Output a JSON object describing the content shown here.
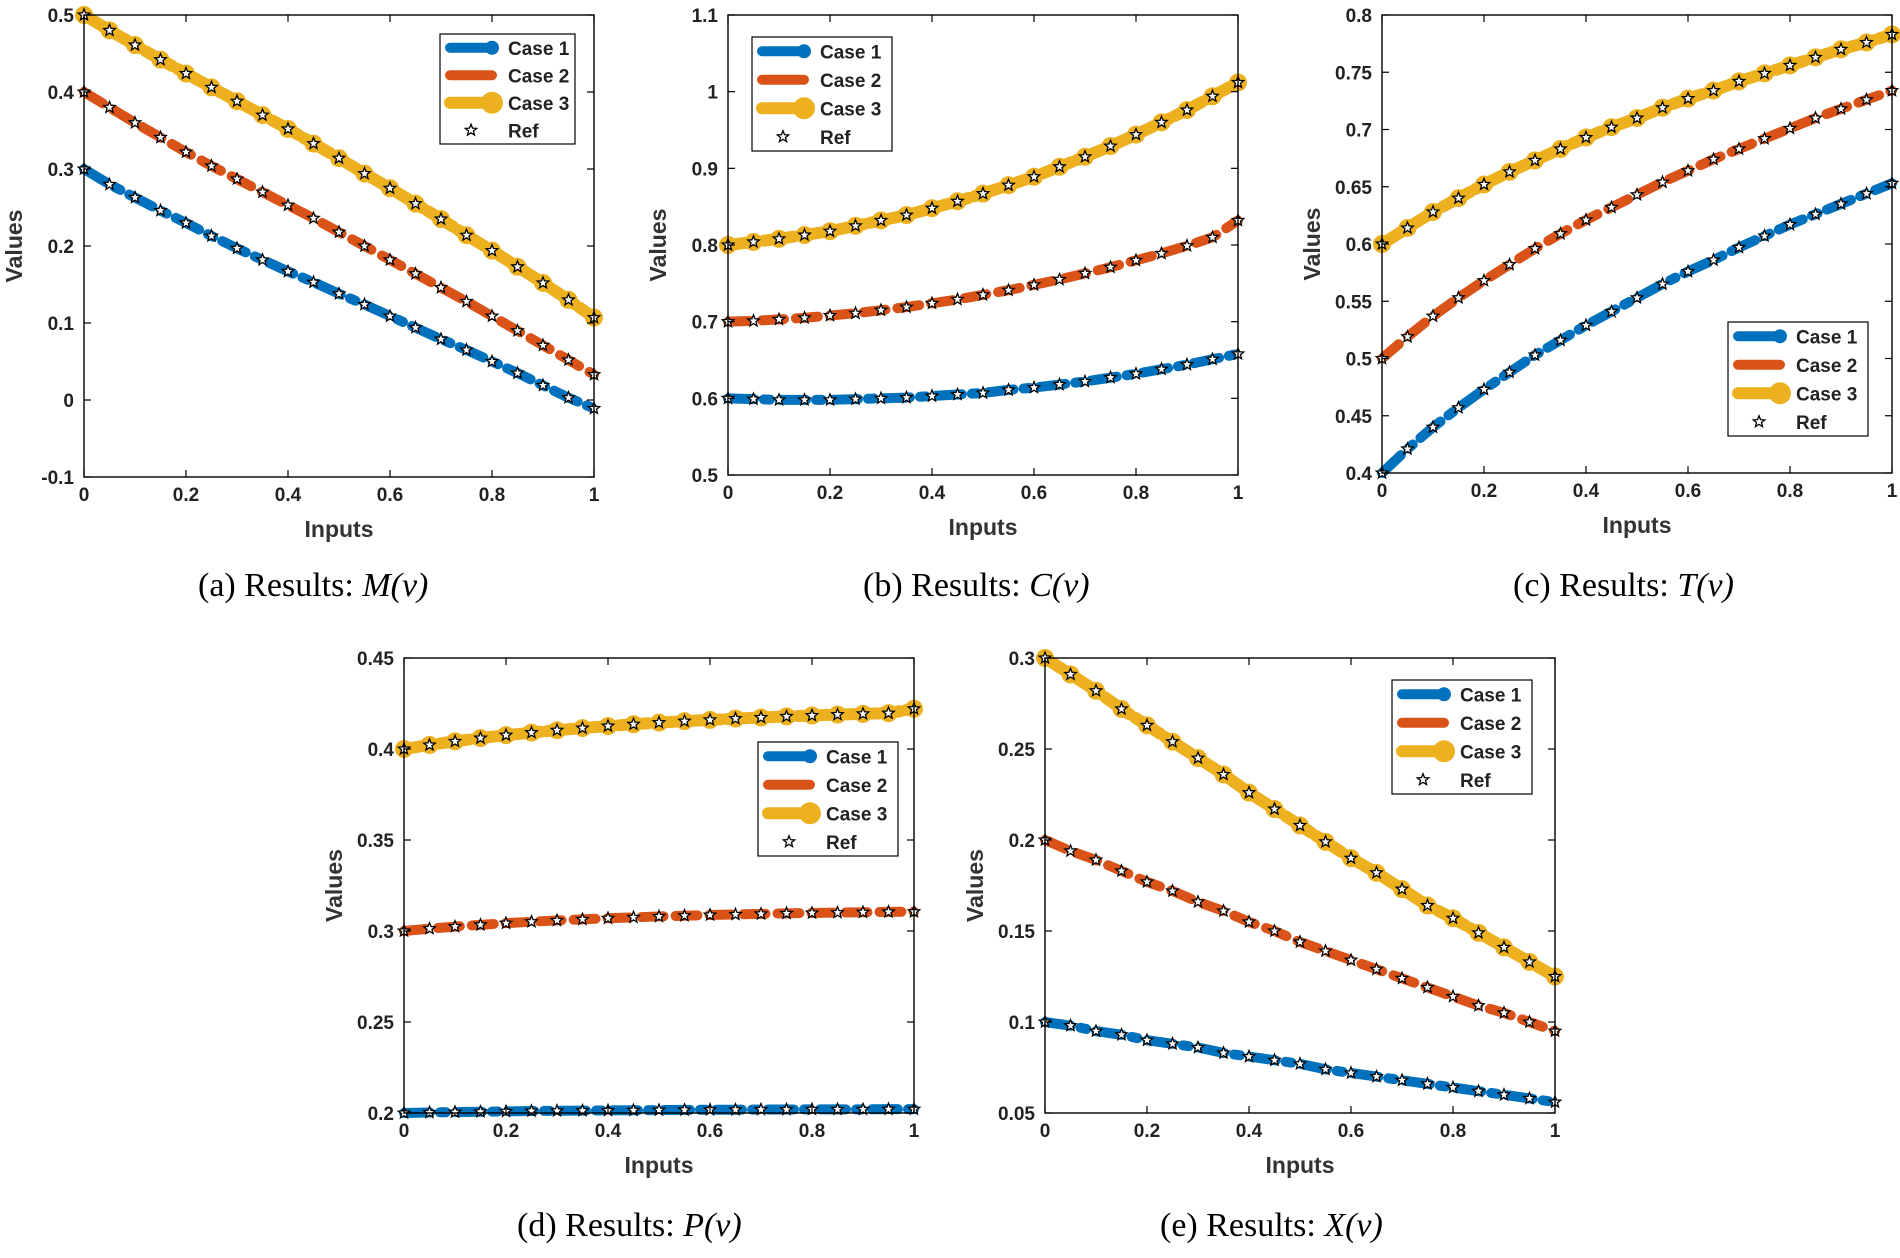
{
  "figure": {
    "colors": {
      "case1": "#0072BD",
      "case2": "#D95319",
      "case3": "#EDB120",
      "ref": "#000000",
      "axis": "#000000"
    }
  },
  "chart_data": [
    {
      "type": "line",
      "panel": "a",
      "caption_prefix": "(a) Results: ",
      "caption_fn": "M(v)",
      "xlabel": "Inputs",
      "ylabel": "Values",
      "xlim": [
        0,
        1
      ],
      "ylim": [
        -0.1,
        0.5
      ],
      "xticks": [
        0,
        0.2,
        0.4,
        0.6,
        0.8,
        1
      ],
      "xtick_labels": [
        "0",
        "0.2",
        "0.4",
        "0.6",
        "0.8",
        "1"
      ],
      "yticks": [
        -0.1,
        0,
        0.1,
        0.2,
        0.3,
        0.4,
        0.5
      ],
      "ytick_labels": [
        "-0.1",
        "0",
        "0.1",
        "0.2",
        "0.3",
        "0.4",
        "0.5"
      ],
      "legend_position": "top-right",
      "legend": [
        "Case 1",
        "Case 2",
        "Case 3",
        "Ref"
      ],
      "x": [
        0,
        0.05,
        0.1,
        0.15,
        0.2,
        0.25,
        0.3,
        0.35,
        0.4,
        0.45,
        0.5,
        0.55,
        0.6,
        0.65,
        0.7,
        0.75,
        0.8,
        0.85,
        0.9,
        0.95,
        1
      ],
      "series": [
        {
          "name": "Case 1",
          "values": [
            0.3,
            0.28,
            0.263,
            0.246,
            0.23,
            0.213,
            0.197,
            0.182,
            0.167,
            0.153,
            0.138,
            0.124,
            0.109,
            0.094,
            0.079,
            0.065,
            0.05,
            0.035,
            0.019,
            0.003,
            -0.011
          ]
        },
        {
          "name": "Case 2",
          "values": [
            0.4,
            0.38,
            0.36,
            0.341,
            0.322,
            0.304,
            0.287,
            0.27,
            0.253,
            0.236,
            0.218,
            0.2,
            0.182,
            0.164,
            0.146,
            0.128,
            0.109,
            0.09,
            0.071,
            0.052,
            0.033
          ]
        },
        {
          "name": "Case 3",
          "values": [
            0.5,
            0.48,
            0.461,
            0.442,
            0.424,
            0.406,
            0.388,
            0.37,
            0.352,
            0.333,
            0.314,
            0.294,
            0.275,
            0.255,
            0.235,
            0.214,
            0.194,
            0.173,
            0.152,
            0.13,
            0.107
          ]
        }
      ]
    },
    {
      "type": "line",
      "panel": "b",
      "caption_prefix": "(b) Results: ",
      "caption_fn": "C(v)",
      "xlabel": "Inputs",
      "ylabel": "Values",
      "xlim": [
        0,
        1
      ],
      "ylim": [
        0.5,
        1.1
      ],
      "xticks": [
        0,
        0.2,
        0.4,
        0.6,
        0.8,
        1
      ],
      "xtick_labels": [
        "0",
        "0.2",
        "0.4",
        "0.6",
        "0.8",
        "1"
      ],
      "yticks": [
        0.5,
        0.6,
        0.7,
        0.8,
        0.9,
        1,
        1.1
      ],
      "ytick_labels": [
        "0.5",
        "0.6",
        "0.7",
        "0.8",
        "0.9",
        "1",
        "1.1"
      ],
      "legend_position": "top-left",
      "legend": [
        "Case 1",
        "Case 2",
        "Case 3",
        "Ref"
      ],
      "x": [
        0,
        0.05,
        0.1,
        0.15,
        0.2,
        0.25,
        0.3,
        0.35,
        0.4,
        0.45,
        0.5,
        0.55,
        0.6,
        0.65,
        0.7,
        0.75,
        0.8,
        0.85,
        0.9,
        0.95,
        1
      ],
      "series": [
        {
          "name": "Case 1",
          "values": [
            0.6,
            0.599,
            0.598,
            0.598,
            0.598,
            0.599,
            0.6,
            0.601,
            0.603,
            0.605,
            0.607,
            0.611,
            0.614,
            0.618,
            0.622,
            0.627,
            0.632,
            0.638,
            0.644,
            0.651,
            0.658
          ]
        },
        {
          "name": "Case 2",
          "values": [
            0.7,
            0.701,
            0.703,
            0.705,
            0.708,
            0.711,
            0.715,
            0.719,
            0.724,
            0.729,
            0.735,
            0.741,
            0.748,
            0.755,
            0.763,
            0.771,
            0.78,
            0.789,
            0.799,
            0.81,
            0.832
          ]
        },
        {
          "name": "Case 3",
          "values": [
            0.8,
            0.804,
            0.808,
            0.813,
            0.818,
            0.825,
            0.832,
            0.839,
            0.848,
            0.857,
            0.867,
            0.878,
            0.889,
            0.902,
            0.915,
            0.929,
            0.944,
            0.96,
            0.976,
            0.994,
            1.012
          ]
        }
      ]
    },
    {
      "type": "line",
      "panel": "c",
      "caption_prefix": "(c) Results: ",
      "caption_fn": "T(v)",
      "xlabel": "Inputs",
      "ylabel": "Values",
      "xlim": [
        0,
        1
      ],
      "ylim": [
        0.4,
        0.8
      ],
      "xticks": [
        0,
        0.2,
        0.4,
        0.6,
        0.8,
        1
      ],
      "xtick_labels": [
        "0",
        "0.2",
        "0.4",
        "0.6",
        "0.8",
        "1"
      ],
      "yticks": [
        0.4,
        0.45,
        0.5,
        0.55,
        0.6,
        0.65,
        0.7,
        0.75,
        0.8
      ],
      "ytick_labels": [
        "0.4",
        "0.45",
        "0.5",
        "0.55",
        "0.6",
        "0.65",
        "0.7",
        "0.75",
        "0.8"
      ],
      "legend_position": "bottom-right",
      "legend": [
        "Case 1",
        "Case 2",
        "Case 3",
        "Ref"
      ],
      "x": [
        0,
        0.05,
        0.1,
        0.15,
        0.2,
        0.25,
        0.3,
        0.35,
        0.4,
        0.45,
        0.5,
        0.55,
        0.6,
        0.65,
        0.7,
        0.75,
        0.8,
        0.85,
        0.9,
        0.95,
        1
      ],
      "series": [
        {
          "name": "Case 1",
          "values": [
            0.4,
            0.421,
            0.44,
            0.457,
            0.473,
            0.488,
            0.503,
            0.516,
            0.529,
            0.541,
            0.553,
            0.565,
            0.576,
            0.586,
            0.597,
            0.607,
            0.617,
            0.626,
            0.635,
            0.644,
            0.653
          ]
        },
        {
          "name": "Case 2",
          "values": [
            0.5,
            0.519,
            0.537,
            0.553,
            0.568,
            0.582,
            0.596,
            0.609,
            0.621,
            0.632,
            0.643,
            0.654,
            0.664,
            0.674,
            0.683,
            0.692,
            0.701,
            0.71,
            0.718,
            0.726,
            0.734
          ]
        },
        {
          "name": "Case 3",
          "values": [
            0.6,
            0.614,
            0.628,
            0.64,
            0.652,
            0.663,
            0.673,
            0.683,
            0.693,
            0.702,
            0.71,
            0.719,
            0.727,
            0.734,
            0.742,
            0.749,
            0.756,
            0.763,
            0.77,
            0.776,
            0.783
          ]
        }
      ]
    },
    {
      "type": "line",
      "panel": "d",
      "caption_prefix": "(d) Results: ",
      "caption_fn": "P(v)",
      "xlabel": "Inputs",
      "ylabel": "Values",
      "xlim": [
        0,
        1
      ],
      "ylim": [
        0.2,
        0.45
      ],
      "xticks": [
        0,
        0.2,
        0.4,
        0.6,
        0.8,
        1
      ],
      "xtick_labels": [
        "0",
        "0.2",
        "0.4",
        "0.6",
        "0.8",
        "1"
      ],
      "yticks": [
        0.2,
        0.25,
        0.3,
        0.35,
        0.4,
        0.45
      ],
      "ytick_labels": [
        "0.2",
        "0.25",
        "0.3",
        "0.35",
        "0.4",
        "0.45"
      ],
      "legend_position": "center-right",
      "legend": [
        "Case 1",
        "Case 2",
        "Case 3",
        "Ref"
      ],
      "x": [
        0,
        0.05,
        0.1,
        0.15,
        0.2,
        0.25,
        0.3,
        0.35,
        0.4,
        0.45,
        0.5,
        0.55,
        0.6,
        0.65,
        0.7,
        0.75,
        0.8,
        0.85,
        0.9,
        0.95,
        1
      ],
      "series": [
        {
          "name": "Case 1",
          "values": [
            0.2,
            0.2003,
            0.2005,
            0.2007,
            0.2009,
            0.2011,
            0.2012,
            0.2013,
            0.2014,
            0.2015,
            0.2016,
            0.2017,
            0.2018,
            0.2018,
            0.2019,
            0.2019,
            0.202,
            0.202,
            0.202,
            0.2021,
            0.2021
          ]
        },
        {
          "name": "Case 2",
          "values": [
            0.3,
            0.3013,
            0.3024,
            0.3034,
            0.3043,
            0.3051,
            0.3058,
            0.3064,
            0.307,
            0.3075,
            0.308,
            0.3084,
            0.3088,
            0.3091,
            0.3094,
            0.3097,
            0.3099,
            0.3101,
            0.3103,
            0.3105,
            0.3106
          ]
        },
        {
          "name": "Case 3",
          "values": [
            0.4,
            0.4022,
            0.4042,
            0.406,
            0.4076,
            0.409,
            0.4103,
            0.4115,
            0.4126,
            0.4136,
            0.4145,
            0.4153,
            0.416,
            0.4167,
            0.4173,
            0.4179,
            0.4184,
            0.4189,
            0.4193,
            0.4197,
            0.4221
          ]
        }
      ]
    },
    {
      "type": "line",
      "panel": "e",
      "caption_prefix": "(e) Results: ",
      "caption_fn": "X(v)",
      "xlabel": "Inputs",
      "ylabel": "Values",
      "xlim": [
        0,
        1
      ],
      "ylim": [
        0.05,
        0.3
      ],
      "xticks": [
        0,
        0.2,
        0.4,
        0.6,
        0.8,
        1
      ],
      "xtick_labels": [
        "0",
        "0.2",
        "0.4",
        "0.6",
        "0.8",
        "1"
      ],
      "yticks": [
        0.05,
        0.1,
        0.15,
        0.2,
        0.25,
        0.3
      ],
      "ytick_labels": [
        "0.05",
        "0.1",
        "0.15",
        "0.2",
        "0.25",
        "0.3"
      ],
      "legend_position": "top-right",
      "legend": [
        "Case 1",
        "Case 2",
        "Case 3",
        "Ref"
      ],
      "x": [
        0,
        0.05,
        0.1,
        0.15,
        0.2,
        0.25,
        0.3,
        0.35,
        0.4,
        0.45,
        0.5,
        0.55,
        0.6,
        0.65,
        0.7,
        0.75,
        0.8,
        0.85,
        0.9,
        0.95,
        1
      ],
      "series": [
        {
          "name": "Case 1",
          "values": [
            0.1,
            0.098,
            0.095,
            0.093,
            0.09,
            0.088,
            0.086,
            0.083,
            0.081,
            0.079,
            0.077,
            0.074,
            0.072,
            0.07,
            0.068,
            0.066,
            0.064,
            0.062,
            0.06,
            0.058,
            0.056
          ]
        },
        {
          "name": "Case 2",
          "values": [
            0.2,
            0.194,
            0.189,
            0.183,
            0.177,
            0.172,
            0.166,
            0.161,
            0.155,
            0.15,
            0.144,
            0.139,
            0.134,
            0.129,
            0.124,
            0.119,
            0.114,
            0.109,
            0.105,
            0.1,
            0.095
          ]
        },
        {
          "name": "Case 3",
          "values": [
            0.3,
            0.291,
            0.282,
            0.272,
            0.263,
            0.254,
            0.245,
            0.236,
            0.226,
            0.217,
            0.208,
            0.199,
            0.19,
            0.182,
            0.173,
            0.164,
            0.157,
            0.149,
            0.141,
            0.133,
            0.125
          ]
        }
      ]
    }
  ]
}
